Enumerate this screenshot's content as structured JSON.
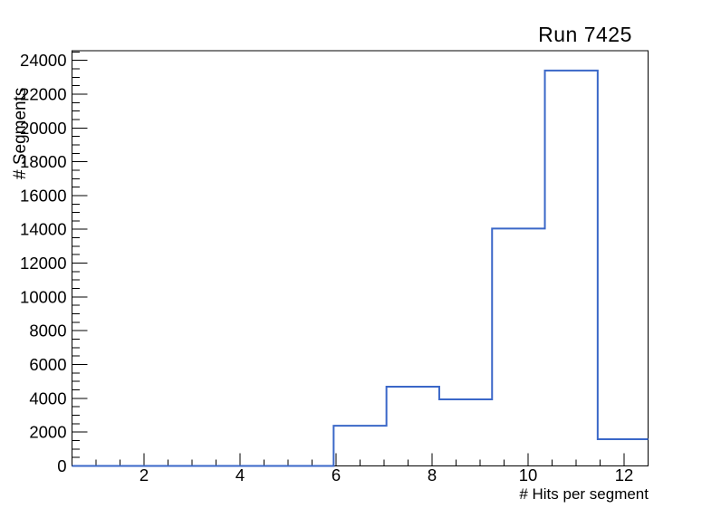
{
  "window": {
    "background_color": "#ffffff"
  },
  "chart_data": {
    "type": "bar",
    "style": "step-histogram",
    "title": "Run 7425",
    "xlabel": "# Hits per segment",
    "ylabel": "# Segments",
    "xlim": [
      0.5,
      12.5
    ],
    "ylim": [
      0,
      24570
    ],
    "x_major_ticks": [
      2,
      4,
      6,
      8,
      10,
      12
    ],
    "x_minor_step": 0.5,
    "y_major_step": 2000,
    "y_minor_step": 500,
    "y_major_tick_labels": [
      "0",
      "2000",
      "4000",
      "6000",
      "8000",
      "10000",
      "12000",
      "14000",
      "16000",
      "18000",
      "20000",
      "22000",
      "24000"
    ],
    "bin_edges": [
      0.45,
      1.55,
      2.65,
      3.75,
      4.85,
      5.95,
      7.05,
      8.15,
      9.25,
      10.35,
      11.45,
      12.55
    ],
    "values": [
      0,
      0,
      0,
      0,
      0,
      2380,
      4690,
      3940,
      14050,
      23400,
      1580
    ],
    "grid": false,
    "legend": false,
    "line_color": "#3a67c8",
    "axis_color": "#000000",
    "ticks_inward": true,
    "tick_sides": [
      "left",
      "bottom"
    ]
  }
}
